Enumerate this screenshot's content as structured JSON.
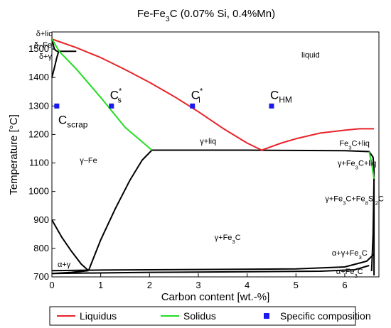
{
  "chart_data": {
    "type": "line",
    "title": "Fe-Fe3C (0.07% Si, 0.4%Mn)",
    "title_parts": {
      "pre": "Fe-Fe",
      "sub": "3",
      "post": "C (0.07% Si, 0.4%Mn)"
    },
    "xlabel": "Carbon content [wt.-%]",
    "ylabel": "Temperature [°C]",
    "xlim": [
      0,
      6.7
    ],
    "ylim": [
      700,
      1560
    ],
    "xticks": [
      0,
      1,
      2,
      3,
      4,
      5,
      6
    ],
    "yticks": [
      700,
      800,
      900,
      1000,
      1100,
      1200,
      1300,
      1400,
      1500
    ],
    "grid": false,
    "legend_position": "bottom",
    "legend": [
      {
        "name": "Liquidus",
        "color": "#e8232a",
        "kind": "line"
      },
      {
        "name": "Solidus",
        "color": "#22dd22",
        "kind": "line"
      },
      {
        "name": "Specific composition",
        "color": "#1a1aee",
        "kind": "square"
      }
    ],
    "series": [
      {
        "name": "Liquidus",
        "color": "#e8232a",
        "x": [
          0,
          0.5,
          1.0,
          1.5,
          2.0,
          2.5,
          3.0,
          3.5,
          4.0,
          4.3,
          4.7,
          5.0,
          5.5,
          6.0,
          6.3,
          6.6
        ],
        "y": [
          1535,
          1505,
          1470,
          1428,
          1383,
          1334,
          1280,
          1222,
          1170,
          1145,
          1170,
          1185,
          1205,
          1215,
          1220,
          1220
        ]
      },
      {
        "name": "Solidus",
        "color": "#22dd22",
        "x": [
          0,
          0.15,
          0.5,
          1.0,
          1.5,
          2.05
        ],
        "y": [
          1535,
          1492,
          1430,
          1330,
          1225,
          1145
        ]
      },
      {
        "name": "Solidus-right",
        "color": "#22dd22",
        "x": [
          6.5,
          6.55,
          6.6
        ],
        "y": [
          1140,
          1100,
          1045
        ]
      }
    ],
    "phase_lines": [
      {
        "x": [
          0,
          0.06,
          0.1,
          0.14
        ],
        "y": [
          1400,
          1440,
          1470,
          1492
        ]
      },
      {
        "x": [
          0.1,
          0.5
        ],
        "y": [
          1492,
          1492
        ]
      },
      {
        "x": [
          0,
          0.05,
          0.1
        ],
        "y": [
          1535,
          1500,
          1492
        ]
      },
      {
        "x": [
          2.05,
          4.0,
          6.0,
          6.5,
          6.58,
          6.6,
          6.6
        ],
        "y": [
          1145,
          1145,
          1143,
          1140,
          1120,
          1080,
          1045
        ]
      },
      {
        "x": [
          0.75,
          1.0,
          1.3,
          1.6,
          1.85,
          2.05
        ],
        "y": [
          722,
          830,
          940,
          1040,
          1110,
          1145
        ]
      },
      {
        "x": [
          0,
          0.2,
          0.4,
          0.6,
          0.75
        ],
        "y": [
          900,
          840,
          790,
          745,
          722
        ]
      },
      {
        "x": [
          0,
          0.4,
          0.75
        ],
        "y": [
          712,
          716,
          722
        ]
      },
      {
        "x": [
          0,
          1.0,
          3.0,
          5.0,
          6.0,
          6.45,
          6.6
        ],
        "y": [
          722,
          724,
          726,
          728,
          735,
          755,
          780
        ]
      },
      {
        "x": [
          0,
          2.0,
          4.0,
          5.5,
          6.2,
          6.5
        ],
        "y": [
          712,
          716,
          718,
          720,
          725,
          740
        ]
      },
      {
        "x": [
          6.55,
          6.58,
          6.6
        ],
        "y": [
          720,
          850,
          1045
        ]
      },
      {
        "x": [
          6.6,
          6.6
        ],
        "y": [
          705,
          1045
        ]
      }
    ],
    "points": [
      {
        "x": 0.1,
        "y": 1300,
        "label": "Cscrap",
        "base": "C",
        "sub": "scrap",
        "sup": "",
        "label_pos": "below"
      },
      {
        "x": 1.22,
        "y": 1300,
        "label": "Cs*",
        "base": "C",
        "sub": "s",
        "sup": "*",
        "label_pos": "above"
      },
      {
        "x": 2.88,
        "y": 1300,
        "label": "Cl*",
        "base": "C",
        "sub": "l",
        "sup": "*",
        "label_pos": "above"
      },
      {
        "x": 4.5,
        "y": 1300,
        "label": "CHM",
        "base": "C",
        "sub": "HM",
        "sup": "",
        "label_pos": "above"
      }
    ],
    "annotations": [
      {
        "text": "liquid",
        "x": 5.3,
        "y": 1470,
        "anchor": "middle"
      },
      {
        "text": "δ+liq",
        "x": 0.02,
        "y": 1545,
        "anchor": "end"
      },
      {
        "text": "δ–Fe",
        "x": 0.0,
        "y": 1505,
        "anchor": "end"
      },
      {
        "text": "δ+γ",
        "x": 0.0,
        "y": 1465,
        "anchor": "end"
      },
      {
        "text": "γ+liq",
        "x": 3.2,
        "y": 1168,
        "anchor": "middle"
      },
      {
        "text": "γ–Fe",
        "x": 0.75,
        "y": 1100,
        "anchor": "middle"
      },
      {
        "text": "Fe3C+liq",
        "x": 6.2,
        "y": 1160,
        "anchor": "middle",
        "parts": [
          "Fe",
          "3",
          "C+liq"
        ]
      },
      {
        "text": "γ+Fe3C+liq",
        "x": 6.25,
        "y": 1090,
        "anchor": "middle",
        "parts": [
          "γ+Fe",
          "3",
          "C+liq"
        ]
      },
      {
        "text": "γ+Fe3C+Fe8Si2C",
        "x": 6.2,
        "y": 965,
        "anchor": "middle",
        "parts": [
          "γ+Fe",
          "3",
          "C+Fe",
          "8",
          "Si",
          "2",
          "C"
        ]
      },
      {
        "text": "γ+Fe3C",
        "x": 3.6,
        "y": 830,
        "anchor": "middle",
        "parts": [
          "γ+Fe",
          "3",
          "C"
        ]
      },
      {
        "text": "α+γ",
        "x": 0.25,
        "y": 735,
        "anchor": "middle"
      },
      {
        "text": "α+γ+Fe3C",
        "x": 6.1,
        "y": 775,
        "anchor": "middle",
        "parts": [
          "α+γ+Fe",
          "3",
          "C"
        ]
      },
      {
        "text": "α+Fe3C",
        "x": 6.1,
        "y": 710,
        "anchor": "middle",
        "parts": [
          "α+Fe",
          "3",
          "C"
        ]
      }
    ]
  }
}
